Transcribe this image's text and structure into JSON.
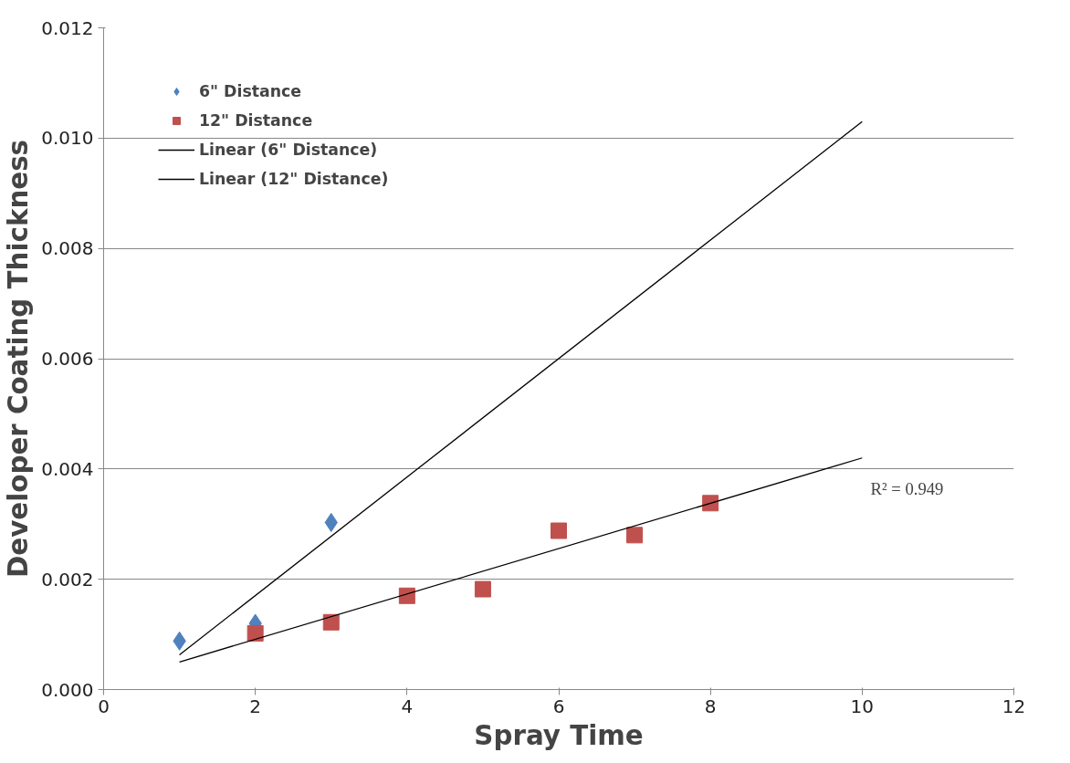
{
  "chart_data": {
    "type": "scatter",
    "xlabel": "Spray Time",
    "ylabel": "Developer Coating Thickness",
    "xlim": [
      0,
      12
    ],
    "xticks": [
      0,
      2,
      4,
      6,
      8,
      10,
      12
    ],
    "ylim": [
      0,
      0.012
    ],
    "yticks": [
      {
        "value": 0,
        "label": "0.000"
      },
      {
        "value": 0.002,
        "label": "0.002"
      },
      {
        "value": 0.004,
        "label": "0.004"
      },
      {
        "value": 0.006,
        "label": "0.006"
      },
      {
        "value": 0.008,
        "label": "0.008"
      },
      {
        "value": 0.01,
        "label": "0.010"
      },
      {
        "value": 0.012,
        "label": "0.012"
      }
    ],
    "grid": "y",
    "legend": "top left",
    "series": [
      {
        "name": "6\" Distance",
        "marker": "diamond",
        "color": "#4f81bd",
        "x": [
          1,
          2,
          3
        ],
        "values": [
          0.00088,
          0.0012,
          0.00303
        ]
      },
      {
        "name": "12\" Distance",
        "marker": "square",
        "color": "#c0504d",
        "x": [
          2,
          3,
          4,
          5,
          6,
          7,
          8
        ],
        "values": [
          0.00102,
          0.00122,
          0.0017,
          0.00182,
          0.00288,
          0.0028,
          0.00338
        ]
      },
      {
        "name": "Linear (6\" Distance)",
        "type": "line",
        "line_style": "solid",
        "color": "#000000",
        "x": [
          1,
          10
        ],
        "values": [
          0.00063,
          0.0103
        ]
      },
      {
        "name": "Linear (12\" Distance)",
        "type": "line",
        "line_style": "solid",
        "color": "#000000",
        "x": [
          1,
          10
        ],
        "values": [
          0.0005,
          0.0042
        ]
      }
    ],
    "annotations": [
      "R² = 0.949"
    ]
  }
}
